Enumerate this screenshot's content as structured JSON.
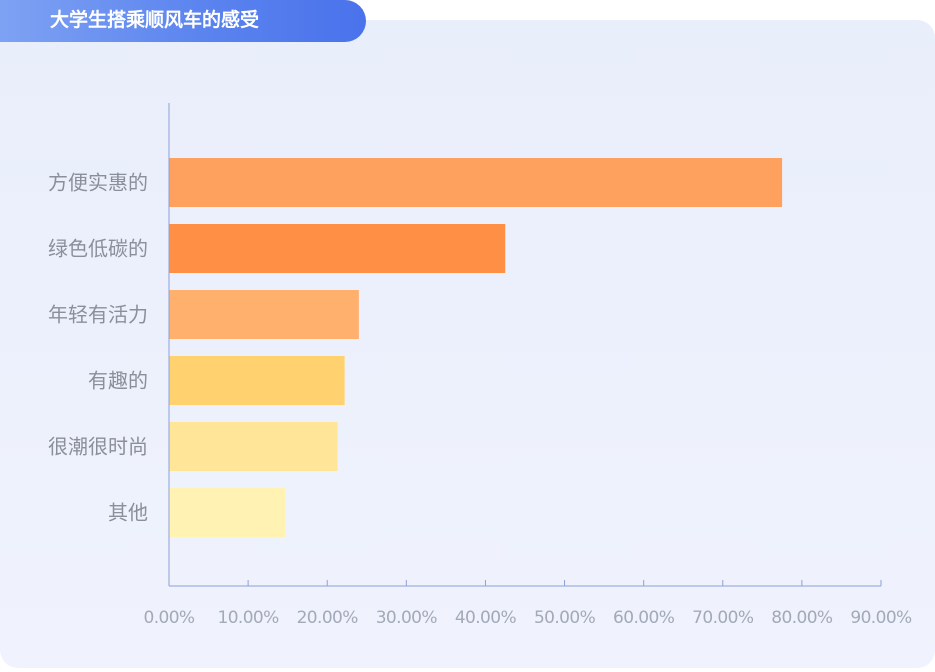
{
  "header": {
    "title": "大学生搭乘顺风车的感受"
  },
  "colors": {
    "axis": "#8da0d8",
    "bars": [
      "#ffa15e",
      "#ff8f44",
      "#ffb06d",
      "#ffd26f",
      "#ffe597",
      "#fff2b3"
    ]
  },
  "chart_data": {
    "type": "bar",
    "orientation": "horizontal",
    "title": "大学生搭乘顺风车的感受",
    "categories": [
      "方便实惠的",
      "绿色低碳的",
      "年轻有活力",
      "有趣的",
      "很潮很时尚",
      "其他"
    ],
    "values": [
      77.5,
      42.5,
      24.0,
      22.2,
      21.3,
      14.7
    ],
    "unit": "%",
    "xlim": [
      0,
      90
    ],
    "xticks": [
      0,
      10,
      20,
      30,
      40,
      50,
      60,
      70,
      80,
      90
    ],
    "xtick_labels": [
      "0.00%",
      "10.00%",
      "20.00%",
      "30.00%",
      "40.00%",
      "50.00%",
      "60.00%",
      "70.00%",
      "80.00%",
      "90.00%"
    ],
    "grid": false,
    "legend": "none"
  }
}
